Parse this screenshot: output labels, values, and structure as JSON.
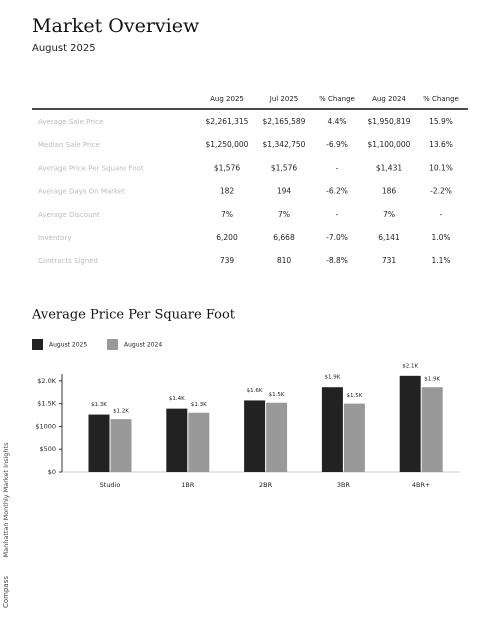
{
  "header": {
    "title": "Market Overview",
    "subtitle": "August 2025"
  },
  "table": {
    "columns": [
      "Aug 2025",
      "Jul 2025",
      "% Change",
      "Aug 2024",
      "% Change"
    ],
    "rows": [
      [
        "Average Sale Price",
        "$2,261,315",
        "$2,165,589",
        "4.4%",
        "$1,950,819",
        "15.9%"
      ],
      [
        "Median Sale Price",
        "$1,250,000",
        "$1,342,750",
        "-6.9%",
        "$1,100,000",
        "13.6%"
      ],
      [
        "Average Price Per Square Foot",
        "$1,576",
        "$1,576",
        "-",
        "$1,431",
        "10.1%"
      ],
      [
        "Average Days On Market",
        "182",
        "194",
        "-6.2%",
        "186",
        "-2.2%"
      ],
      [
        "Average Discount",
        "7%",
        "7%",
        "-",
        "7%",
        "-"
      ],
      [
        "Inventory",
        "6,200",
        "6,668",
        "-7.0%",
        "6,141",
        "1.0%"
      ],
      [
        "Contracts Signed",
        "739",
        "810",
        "-8.8%",
        "731",
        "1.1%"
      ]
    ]
  },
  "chart_data": {
    "type": "bar",
    "title": "Average Price Per Square Foot",
    "categories": [
      "Studio",
      "1BR",
      "2BR",
      "3BR",
      "4BR+"
    ],
    "series": [
      {
        "name": "August 2025",
        "color": "#222222",
        "values": [
          1260,
          1390,
          1570,
          1860,
          2110
        ],
        "value_labels": [
          "$1.3K",
          "$1.4K",
          "$1.6K",
          "$1.9K",
          "$2.1K"
        ]
      },
      {
        "name": "August 2024",
        "color": "#999999",
        "values": [
          1160,
          1300,
          1520,
          1500,
          1860
        ],
        "value_labels": [
          "$1.2K",
          "$1.3K",
          "$1.5K",
          "$1.5K",
          "$1.9K"
        ]
      }
    ],
    "ylim": [
      0,
      2150
    ],
    "yticks": [
      {
        "value": 0,
        "label": "$0"
      },
      {
        "value": 500,
        "label": "$500"
      },
      {
        "value": 1000,
        "label": "$1000"
      },
      {
        "value": 1500,
        "label": "$1.5K"
      },
      {
        "value": 2000,
        "label": "$2.0K"
      }
    ],
    "legend": "top-left"
  },
  "sidebar": {
    "report": "Manhattan Monthly Market Insights",
    "brand": "Compass"
  }
}
